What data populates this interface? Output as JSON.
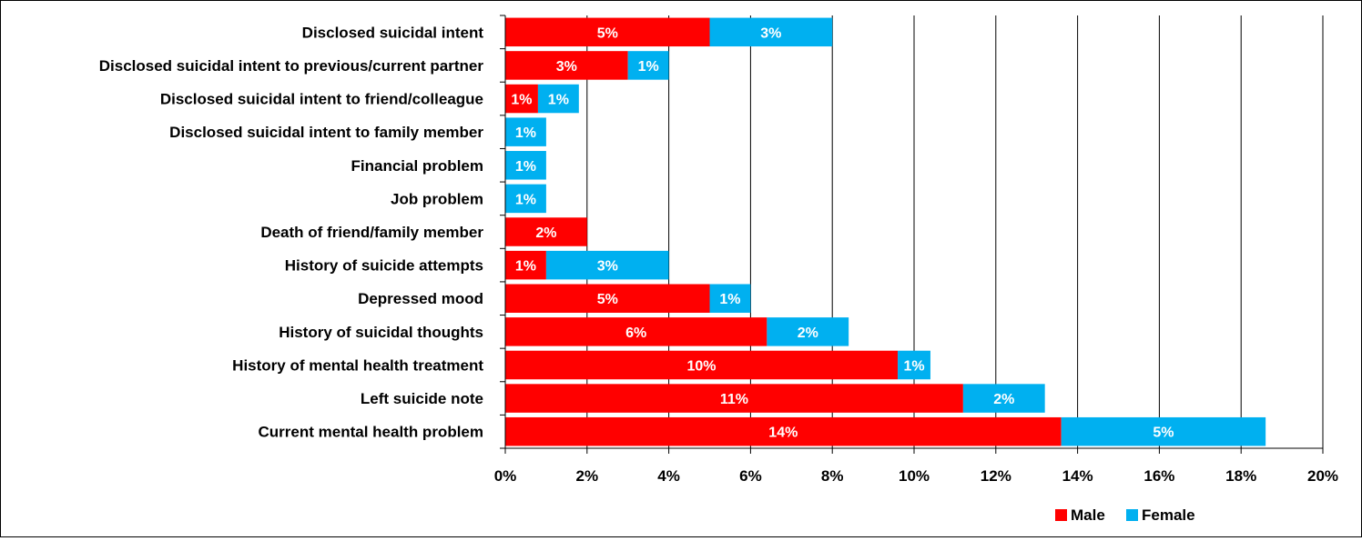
{
  "chart_data": {
    "type": "bar",
    "orientation": "horizontal",
    "stacked": true,
    "categories": [
      "Disclosed suicidal intent",
      "Disclosed suicidal intent to previous/current partner",
      "Disclosed suicidal intent to friend/colleague",
      "Disclosed suicidal intent to family member",
      "Financial problem",
      "Job problem",
      "Death of friend/family member",
      "History of suicide attempts",
      "Depressed mood",
      "History of suicidal thoughts",
      "History of mental health treatment",
      "Left suicide note",
      "Current mental health problem"
    ],
    "series": [
      {
        "name": "Male",
        "color": "#ff0000",
        "values": [
          5.0,
          3.0,
          0.8,
          0,
          0,
          0,
          2.0,
          1.0,
          5.0,
          6.4,
          9.6,
          11.2,
          13.6
        ],
        "labels": [
          "5%",
          "3%",
          "1%",
          "",
          "",
          "",
          "2%",
          "1%",
          "5%",
          "6%",
          "10%",
          "11%",
          "14%"
        ]
      },
      {
        "name": "Female",
        "color": "#00b0f0",
        "values": [
          3.0,
          1.0,
          1.0,
          1.0,
          1.0,
          1.0,
          0,
          3.0,
          1.0,
          2.0,
          0.8,
          2.0,
          5.0
        ],
        "labels": [
          "3%",
          "1%",
          "1%",
          "1%",
          "1%",
          "1%",
          "",
          "3%",
          "1%",
          "2%",
          "1%",
          "2%",
          "5%"
        ]
      }
    ],
    "x_ticks": [
      "0%",
      "2%",
      "4%",
      "6%",
      "8%",
      "10%",
      "12%",
      "14%",
      "16%",
      "18%",
      "20%"
    ],
    "xlim": [
      0,
      20
    ],
    "grid": "vertical",
    "legend": "bottom-right"
  }
}
